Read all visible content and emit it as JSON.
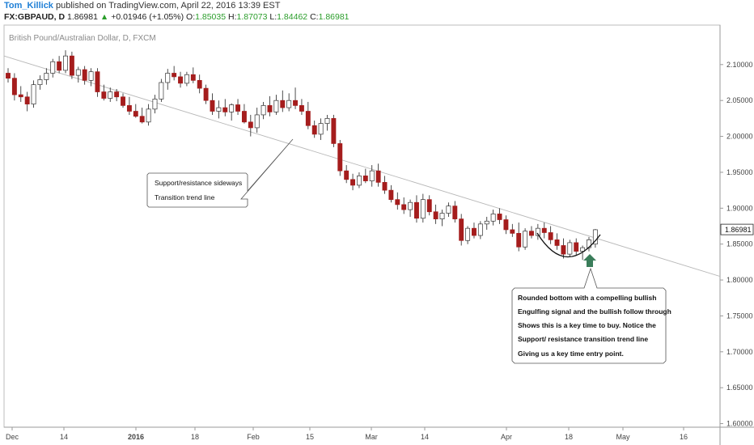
{
  "header": {
    "author": "Tom_Killick",
    "published": "published on TradingView.com, April 22, 2016 13:39 EST",
    "symbol": "FX:GBPAUD, D",
    "last": "1.86981",
    "change": "+0.01946 (+1.05%)",
    "open_label": "O:",
    "open": "1.85035",
    "high_label": "H:",
    "high": "1.87073",
    "low_label": "L:",
    "low": "1.84462",
    "close_label": "C:",
    "close": "1.86981"
  },
  "chart_data": {
    "type": "candlestick",
    "title": "British Pound/Australian Dollar, D, FXCM",
    "last_price": 1.86981,
    "ylim": [
      1.595,
      2.155
    ],
    "y_ticks": [
      "2.10000",
      "2.05000",
      "2.00000",
      "1.95000",
      "1.90000",
      "1.85000",
      "1.80000",
      "1.75000",
      "1.70000",
      "1.65000",
      "1.60000"
    ],
    "x_ticks": [
      {
        "label": "Dec",
        "bold": false
      },
      {
        "label": "14",
        "bold": false
      },
      {
        "label": "2016",
        "bold": true
      },
      {
        "label": "18",
        "bold": false
      },
      {
        "label": "Feb",
        "bold": false
      },
      {
        "label": "15",
        "bold": false
      },
      {
        "label": "Mar",
        "bold": false
      },
      {
        "label": "14",
        "bold": false
      },
      {
        "label": "Apr",
        "bold": false
      },
      {
        "label": "18",
        "bold": false
      },
      {
        "label": "May",
        "bold": false
      },
      {
        "label": "16",
        "bold": false
      }
    ],
    "trendline": {
      "start": 2.112,
      "end": 1.805
    },
    "candles": [
      [
        2.088,
        2.095,
        2.075,
        2.081
      ],
      [
        2.081,
        2.088,
        2.05,
        2.058
      ],
      [
        2.058,
        2.07,
        2.048,
        2.055
      ],
      [
        2.055,
        2.062,
        2.035,
        2.045
      ],
      [
        2.045,
        2.078,
        2.04,
        2.072
      ],
      [
        2.072,
        2.085,
        2.065,
        2.079
      ],
      [
        2.079,
        2.095,
        2.072,
        2.088
      ],
      [
        2.088,
        2.108,
        2.082,
        2.104
      ],
      [
        2.104,
        2.112,
        2.088,
        2.092
      ],
      [
        2.092,
        2.12,
        2.088,
        2.112
      ],
      [
        2.112,
        2.118,
        2.08,
        2.085
      ],
      [
        2.085,
        2.097,
        2.075,
        2.093
      ],
      [
        2.093,
        2.098,
        2.072,
        2.078
      ],
      [
        2.078,
        2.095,
        2.07,
        2.09
      ],
      [
        2.09,
        2.095,
        2.055,
        2.062
      ],
      [
        2.062,
        2.072,
        2.05,
        2.053
      ],
      [
        2.053,
        2.068,
        2.048,
        2.062
      ],
      [
        2.062,
        2.066,
        2.049,
        2.055
      ],
      [
        2.055,
        2.06,
        2.04,
        2.043
      ],
      [
        2.043,
        2.055,
        2.03,
        2.035
      ],
      [
        2.035,
        2.045,
        2.026,
        2.028
      ],
      [
        2.028,
        2.04,
        2.018,
        2.02
      ],
      [
        2.02,
        2.045,
        2.015,
        2.038
      ],
      [
        2.038,
        2.058,
        2.032,
        2.052
      ],
      [
        2.052,
        2.08,
        2.048,
        2.075
      ],
      [
        2.075,
        2.094,
        2.065,
        2.088
      ],
      [
        2.088,
        2.098,
        2.078,
        2.083
      ],
      [
        2.083,
        2.09,
        2.068,
        2.074
      ],
      [
        2.074,
        2.09,
        2.07,
        2.086
      ],
      [
        2.086,
        2.096,
        2.074,
        2.078
      ],
      [
        2.078,
        2.086,
        2.06,
        2.067
      ],
      [
        2.067,
        2.072,
        2.045,
        2.05
      ],
      [
        2.05,
        2.06,
        2.03,
        2.035
      ],
      [
        2.035,
        2.05,
        2.025,
        2.04
      ],
      [
        2.04,
        2.052,
        2.028,
        2.034
      ],
      [
        2.034,
        2.046,
        2.022,
        2.044
      ],
      [
        2.044,
        2.052,
        2.03,
        2.035
      ],
      [
        2.035,
        2.045,
        2.018,
        2.02
      ],
      [
        2.02,
        2.03,
        2.0,
        2.012
      ],
      [
        2.012,
        2.04,
        2.005,
        2.03
      ],
      [
        2.03,
        2.048,
        2.024,
        2.043
      ],
      [
        2.043,
        2.056,
        2.028,
        2.034
      ],
      [
        2.034,
        2.058,
        2.03,
        2.05
      ],
      [
        2.05,
        2.064,
        2.034,
        2.04
      ],
      [
        2.04,
        2.06,
        2.035,
        2.05
      ],
      [
        2.05,
        2.068,
        2.038,
        2.043
      ],
      [
        2.043,
        2.052,
        2.03,
        2.035
      ],
      [
        2.035,
        2.048,
        2.01,
        2.015
      ],
      [
        2.015,
        2.022,
        1.998,
        2.003
      ],
      [
        2.003,
        2.025,
        1.995,
        2.018
      ],
      [
        2.018,
        2.03,
        2.008,
        2.025
      ],
      [
        2.025,
        2.03,
        1.985,
        1.99
      ],
      [
        1.99,
        1.995,
        1.945,
        1.952
      ],
      [
        1.952,
        1.96,
        1.935,
        1.94
      ],
      [
        1.94,
        1.948,
        1.925,
        1.932
      ],
      [
        1.932,
        1.95,
        1.928,
        1.945
      ],
      [
        1.945,
        1.955,
        1.935,
        1.938
      ],
      [
        1.938,
        1.96,
        1.93,
        1.952
      ],
      [
        1.952,
        1.962,
        1.93,
        1.936
      ],
      [
        1.936,
        1.945,
        1.92,
        1.925
      ],
      [
        1.925,
        1.932,
        1.908,
        1.912
      ],
      [
        1.912,
        1.922,
        1.898,
        1.905
      ],
      [
        1.905,
        1.915,
        1.892,
        1.898
      ],
      [
        1.898,
        1.912,
        1.888,
        1.908
      ],
      [
        1.908,
        1.918,
        1.88,
        1.886
      ],
      [
        1.886,
        1.92,
        1.88,
        1.912
      ],
      [
        1.912,
        1.918,
        1.89,
        1.895
      ],
      [
        1.895,
        1.905,
        1.878,
        1.885
      ],
      [
        1.885,
        1.898,
        1.875,
        1.893
      ],
      [
        1.893,
        1.908,
        1.888,
        1.903
      ],
      [
        1.903,
        1.91,
        1.88,
        1.885
      ],
      [
        1.885,
        1.892,
        1.848,
        1.855
      ],
      [
        1.855,
        1.875,
        1.85,
        1.872
      ],
      [
        1.872,
        1.88,
        1.858,
        1.862
      ],
      [
        1.862,
        1.882,
        1.857,
        1.878
      ],
      [
        1.878,
        1.888,
        1.87,
        1.882
      ],
      [
        1.882,
        1.898,
        1.876,
        1.892
      ],
      [
        1.892,
        1.9,
        1.878,
        1.884
      ],
      [
        1.884,
        1.89,
        1.864,
        1.87
      ],
      [
        1.87,
        1.878,
        1.86,
        1.865
      ],
      [
        1.865,
        1.88,
        1.84,
        1.846
      ],
      [
        1.846,
        1.872,
        1.842,
        1.868
      ],
      [
        1.868,
        1.875,
        1.858,
        1.862
      ],
      [
        1.862,
        1.878,
        1.856,
        1.872
      ],
      [
        1.872,
        1.88,
        1.858,
        1.866
      ],
      [
        1.866,
        1.875,
        1.85,
        1.856
      ],
      [
        1.856,
        1.865,
        1.842,
        1.848
      ],
      [
        1.848,
        1.858,
        1.83,
        1.836
      ],
      [
        1.836,
        1.856,
        1.832,
        1.852
      ],
      [
        1.852,
        1.858,
        1.834,
        1.84
      ],
      [
        1.84,
        1.848,
        1.828,
        1.845
      ],
      [
        1.845,
        1.86,
        1.84,
        1.856
      ],
      [
        1.85,
        1.871,
        1.845,
        1.87
      ]
    ]
  },
  "annotations": {
    "callout1": [
      "Support/resistance sideways",
      "Transition trend line"
    ],
    "callout2": [
      "Rounded bottom with a compelling bullish",
      "Engulfing signal and the bullish follow through",
      "Shows this is a key time to buy. Notice the",
      "Support/ resistance transition trend line",
      "Giving us a key time entry point."
    ]
  },
  "colors": {
    "bearish": "#a51d1d",
    "bullish": "#ffffff",
    "trendline": "#b8b8b8",
    "arrow": "#3a7d5a"
  }
}
